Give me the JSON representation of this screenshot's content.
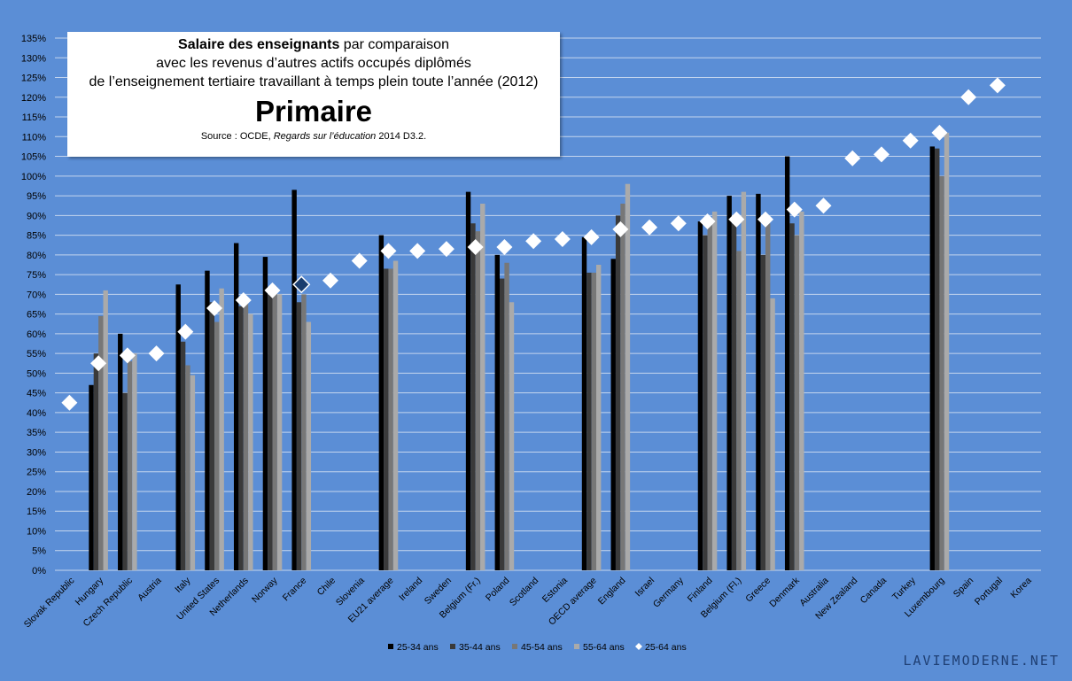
{
  "title_box": {
    "line1_bold": "Salaire des enseignants",
    "line1_rest": " par comparaison",
    "line2": "avec les revenus d’autres actifs occupés diplômés",
    "line3": "de l’enseignement tertiaire travaillant à temps plein toute l’année (2012)",
    "big_title": "Primaire",
    "source_prefix": "Source : OCDE, ",
    "source_italic": "Regards sur l’éducation",
    "source_suffix": " 2014 D3.2."
  },
  "watermark": "LAVIEMODERNE.NET",
  "colors": {
    "background": "#5b8ed6",
    "grid": "#c4d5ee",
    "s1": "#000000",
    "s2": "#3a3a3a",
    "s3": "#777777",
    "s4": "#aaaaaa",
    "marker": "#ffffff",
    "marker_highlight_fill": "#1a3d6e"
  },
  "chart_data": {
    "type": "bar",
    "ylim": [
      0,
      135
    ],
    "y_tick_step": 5,
    "y_tick_suffix": "%",
    "grid": true,
    "legend_position": "bottom",
    "categories": [
      "Slovak Republic",
      "Hungary",
      "Czech Republic",
      "Austria",
      "Italy",
      "United States",
      "Netherlands",
      "Norway",
      "France",
      "Chile",
      "Slovenia",
      "EU21 average",
      "Ireland",
      "Sweden",
      "Belgium (Fr.)",
      "Poland",
      "Scotland",
      "Estonia",
      "OECD average",
      "England",
      "Israel",
      "Germany",
      "Finland",
      "Belgium (Fl.)",
      "Greece",
      "Denmark",
      "Australia",
      "New Zealand",
      "Canada",
      "Turkey",
      "Luxembourg",
      "Spain",
      "Portugal",
      "Korea"
    ],
    "highlight_category": "France",
    "series": [
      {
        "name": "25-34 ans",
        "kind": "bar",
        "values": [
          null,
          47,
          60,
          null,
          72.5,
          76,
          83,
          79.5,
          96.5,
          null,
          null,
          85,
          null,
          null,
          96,
          80,
          null,
          null,
          84.5,
          79,
          null,
          null,
          88.5,
          95,
          95.5,
          105,
          null,
          null,
          null,
          null,
          107.5,
          null,
          null,
          null
        ]
      },
      {
        "name": "35-44 ans",
        "kind": "bar",
        "values": [
          null,
          55,
          45,
          null,
          58,
          68,
          67,
          70,
          68,
          null,
          null,
          76.5,
          null,
          null,
          88,
          74,
          null,
          null,
          75.5,
          90,
          null,
          null,
          85,
          88,
          80,
          88,
          null,
          null,
          null,
          null,
          107,
          null,
          null,
          null
        ]
      },
      {
        "name": "45-54 ans",
        "kind": "bar",
        "values": [
          null,
          64.5,
          53,
          null,
          52,
          63,
          69,
          72,
          70,
          null,
          null,
          76.5,
          null,
          null,
          86,
          78,
          null,
          null,
          75.5,
          93,
          null,
          null,
          88,
          81,
          88,
          85,
          null,
          null,
          null,
          null,
          100,
          null,
          null,
          null
        ]
      },
      {
        "name": "55-64 ans",
        "kind": "bar",
        "values": [
          null,
          71,
          55,
          null,
          49.5,
          71.5,
          65,
          70,
          63,
          null,
          null,
          78.5,
          null,
          null,
          93,
          68,
          null,
          null,
          77.5,
          98,
          null,
          null,
          91,
          96,
          69,
          91,
          null,
          null,
          null,
          null,
          111,
          null,
          null,
          null
        ]
      },
      {
        "name": "25-64 ans",
        "kind": "marker",
        "values": [
          42.5,
          52.5,
          54.5,
          55,
          60.5,
          66.5,
          68.5,
          71,
          72.5,
          73.5,
          78.5,
          81,
          81,
          81.5,
          82,
          82,
          83.5,
          84,
          84.5,
          86.5,
          87,
          88,
          88.5,
          89,
          89,
          91.5,
          92.5,
          104.5,
          105.5,
          109,
          111,
          120,
          123,
          null
        ]
      }
    ]
  }
}
